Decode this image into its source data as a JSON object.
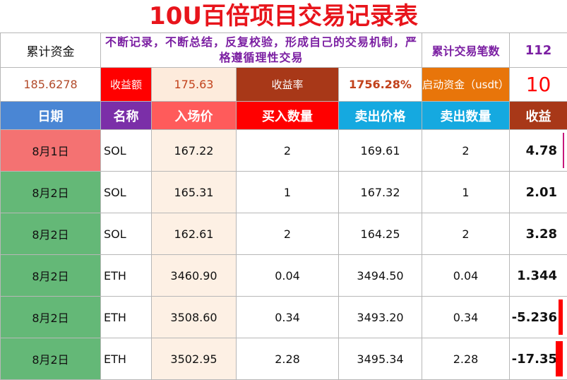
{
  "title": "10U百倍项目交易记录表",
  "summary": {
    "cum_fund_label": "累计资金",
    "cum_fund_value": "185.6278",
    "motto": "不断记录，不断总结，反复校验，形成自己的交易机制，严格遵循理性交易",
    "trade_count_label": "累计交易笔数",
    "trade_count_value": "112",
    "income_label": "收益额",
    "income_value": "175.63",
    "rate_label": "收益率",
    "rate_value": "1756.28%",
    "start_fund_label": "启动资金（usdt）",
    "start_fund_value": "10"
  },
  "columns": [
    "日期",
    "名称",
    "入场价",
    "买入数量",
    "卖出价格",
    "卖出数量",
    "收益"
  ],
  "rows": [
    {
      "date": "8月1日",
      "name": "SOL",
      "entry": "167.22",
      "buy_qty": "2",
      "sell_price": "169.61",
      "sell_qty": "2",
      "pnl": "4.78"
    },
    {
      "date": "8月2日",
      "name": "SOL",
      "entry": "165.31",
      "buy_qty": "1",
      "sell_price": "167.32",
      "sell_qty": "1",
      "pnl": "2.01"
    },
    {
      "date": "8月2日",
      "name": "SOL",
      "entry": "162.61",
      "buy_qty": "2",
      "sell_price": "164.25",
      "sell_qty": "2",
      "pnl": "3.28"
    },
    {
      "date": "8月2日",
      "name": "ETH",
      "entry": "3460.90",
      "buy_qty": "0.04",
      "sell_price": "3494.50",
      "sell_qty": "0.04",
      "pnl": "1.344"
    },
    {
      "date": "8月2日",
      "name": "ETH",
      "entry": "3508.60",
      "buy_qty": "0.34",
      "sell_price": "3493.20",
      "sell_qty": "0.34",
      "pnl": "-5.236"
    },
    {
      "date": "8月2日",
      "name": "ETH",
      "entry": "3502.95",
      "buy_qty": "2.28",
      "sell_price": "3495.34",
      "sell_qty": "2.28",
      "pnl": "-17.35"
    }
  ],
  "colors": {
    "title": "#e8141b",
    "date_first": "#f47272",
    "date_other": "#64b877",
    "header_date": "#4a86d4",
    "header_name": "#7b2fa8",
    "header_entry": "#ff5b5b",
    "header_buy": "#ff0000",
    "header_sell": "#15a9e0",
    "header_pnl": "#a83818"
  }
}
